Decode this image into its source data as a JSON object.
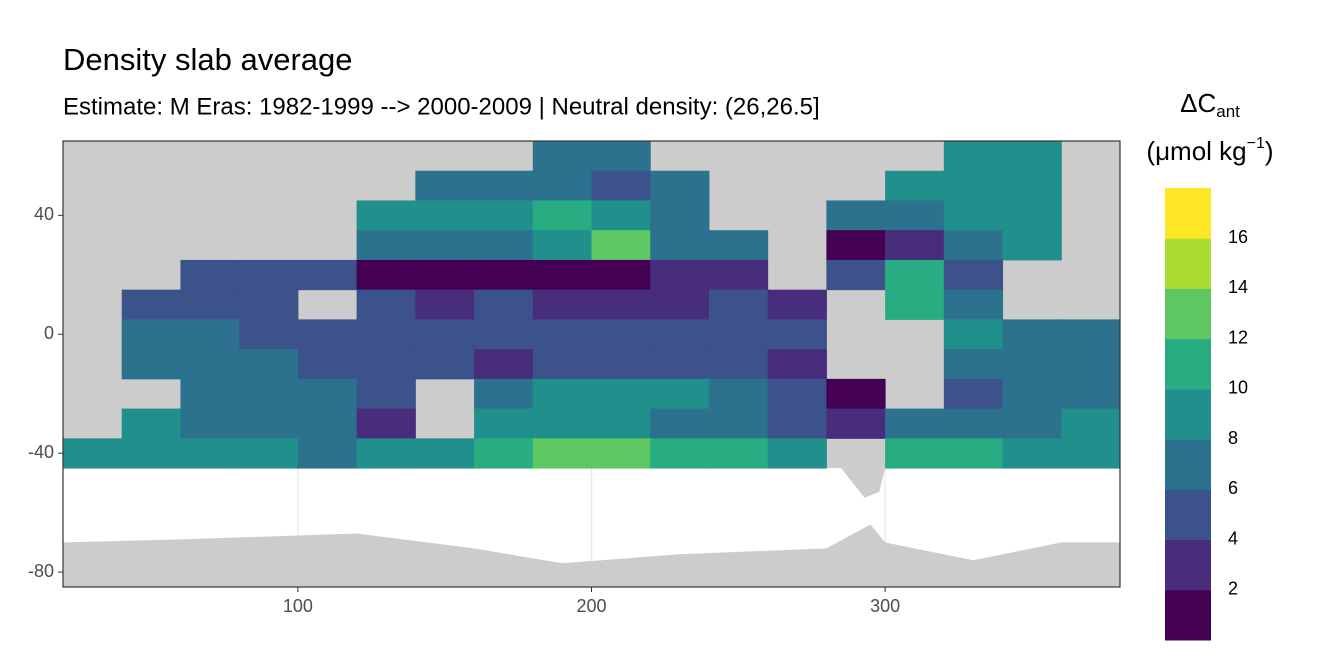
{
  "chart_data": {
    "type": "heatmap",
    "title": "Density slab average",
    "subtitle": "Estimate: M Eras: 1982-1999 --> 2000-2009 | Neutral density: (26,26.5]",
    "legend_title": {
      "main": "ΔC",
      "sub": "ant"
    },
    "legend_unit": {
      "open": "(μmol kg",
      "sup": "−1",
      "close": ")"
    },
    "x": [
      30,
      50,
      70,
      90,
      110,
      130,
      150,
      170,
      190,
      210,
      230,
      250,
      270,
      290,
      310,
      330,
      350,
      370
    ],
    "y": [
      60,
      50,
      40,
      30,
      20,
      10,
      0,
      -10,
      -20,
      -30,
      -40
    ],
    "z": [
      [
        null,
        null,
        null,
        null,
        null,
        null,
        null,
        null,
        6,
        6,
        null,
        null,
        null,
        null,
        null,
        8,
        9,
        null
      ],
      [
        null,
        null,
        null,
        null,
        null,
        null,
        7,
        7,
        7,
        5,
        6,
        null,
        null,
        null,
        8,
        9,
        9,
        null
      ],
      [
        null,
        null,
        null,
        null,
        null,
        8,
        8,
        9,
        10,
        8,
        6,
        null,
        null,
        6,
        7,
        9,
        8,
        null
      ],
      [
        null,
        null,
        null,
        null,
        null,
        7,
        6,
        7,
        9,
        13,
        6,
        6,
        null,
        1,
        2,
        7,
        8,
        null
      ],
      [
        null,
        null,
        4,
        4,
        5,
        1,
        1,
        1,
        1,
        1,
        3,
        3,
        null,
        5,
        10,
        5,
        null,
        null
      ],
      [
        null,
        4,
        4,
        4,
        null,
        4,
        3,
        4,
        3,
        2,
        3,
        4,
        3,
        null,
        11,
        6,
        null,
        null
      ],
      [
        null,
        7,
        6,
        5,
        5,
        4,
        4,
        4,
        5,
        4,
        4,
        5,
        4,
        null,
        null,
        8,
        7,
        7
      ],
      [
        null,
        7,
        6,
        6,
        5,
        4,
        4,
        3,
        4,
        5,
        4,
        4,
        3,
        null,
        null,
        6,
        7,
        7
      ],
      [
        null,
        null,
        6,
        7,
        6,
        5,
        null,
        7,
        8,
        9,
        8,
        6,
        4,
        1,
        null,
        4,
        6,
        7
      ],
      [
        null,
        8,
        7,
        7,
        7,
        2,
        null,
        9,
        8,
        9,
        7,
        7,
        5,
        2,
        6,
        6,
        7,
        8
      ],
      [
        9,
        9,
        8,
        8,
        7,
        8,
        9,
        10,
        12,
        13,
        10,
        10,
        8,
        null,
        11,
        10,
        9,
        9
      ]
    ],
    "xlim": [
      20,
      380
    ],
    "ylim": [
      -85,
      65
    ],
    "xticks": [
      100,
      200,
      300
    ],
    "yticks": [
      40,
      0,
      -40,
      -80
    ],
    "grid": true,
    "legend_breaks": [
      0,
      2,
      4,
      6,
      8,
      10,
      12,
      14,
      16,
      18
    ],
    "legend_ticks": [
      2,
      4,
      6,
      8,
      10,
      12,
      14,
      16
    ],
    "colors": [
      "#440154",
      "#472D7B",
      "#3B528B",
      "#2C728E",
      "#21908C",
      "#27AD81",
      "#5DC863",
      "#AADC32",
      "#FDE725"
    ]
  }
}
